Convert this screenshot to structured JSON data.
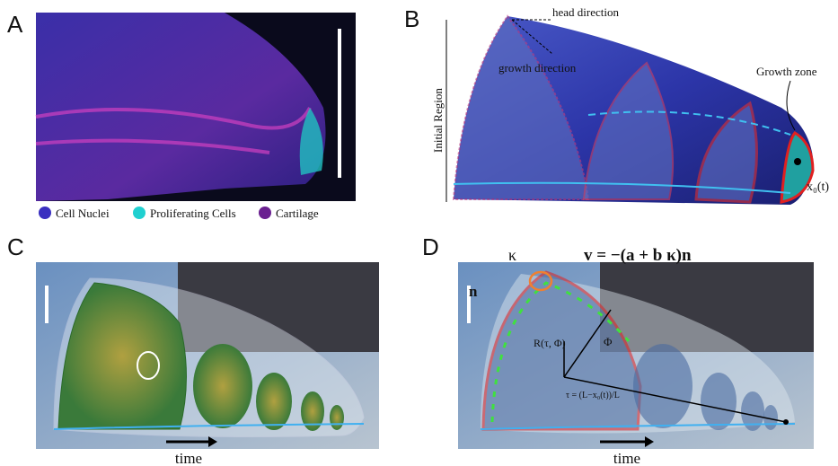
{
  "panels": [
    {
      "label": "A",
      "legend": [
        "Cell Nuclei",
        "Proliferating Cells",
        "Cartilage"
      ]
    },
    {
      "label": "B",
      "annotations": [
        "head direction",
        "growth direction",
        "Initial Region",
        "Growth zone",
        "x₀(t)"
      ]
    },
    {
      "label": "C",
      "axis_label": "time"
    },
    {
      "label": "D",
      "annotations": [
        "κ",
        "v = −(a + b κ)n",
        "n",
        "R(τ, Φ)",
        "Φ",
        "τ = (L−x₀(t))/L"
      ],
      "axis_label": "time"
    }
  ]
}
